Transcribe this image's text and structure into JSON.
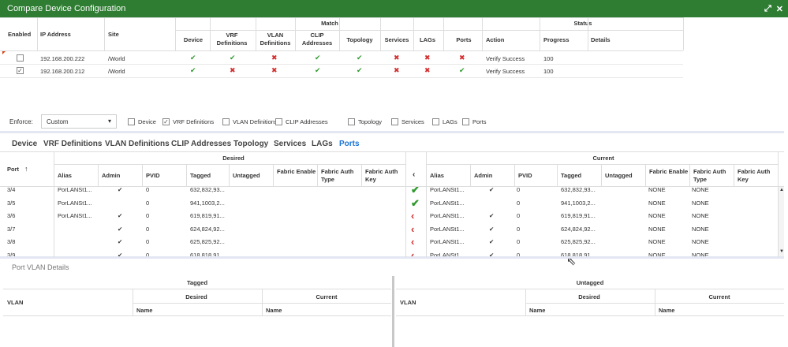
{
  "window": {
    "title": "Compare Device Configuration",
    "maximize_icon": "expand-icon",
    "close_icon": "close-icon"
  },
  "top_table": {
    "group_headers": {
      "match": "Match",
      "status": "Status"
    },
    "columns": {
      "enabled": "Enabled",
      "ip": "IP Address",
      "site": "Site",
      "device": "Device",
      "vrf": "VRF Definitions",
      "vlan": "VLAN Definitions",
      "clip": "CLIP Addresses",
      "topology": "Topology",
      "services": "Services",
      "lags": "LAGs",
      "ports": "Ports",
      "action": "Action",
      "progress": "Progress",
      "details": "Details"
    },
    "rows": [
      {
        "checked": false,
        "ip": "192.168.200.222",
        "site": "/World",
        "match": [
          "ok",
          "ok",
          "bad",
          "ok",
          "ok",
          "bad",
          "bad",
          "bad"
        ],
        "action": "Verify Success",
        "progress": "100"
      },
      {
        "checked": true,
        "ip": "192.168.200.212",
        "site": "/World",
        "match": [
          "ok",
          "bad",
          "bad",
          "ok",
          "ok",
          "bad",
          "bad",
          "ok"
        ],
        "action": "Verify Success",
        "progress": "100"
      }
    ]
  },
  "enforce": {
    "label": "Enforce:",
    "value": "Custom",
    "options": [
      {
        "label": "Device",
        "checked": false
      },
      {
        "label": "VRF Definitions",
        "checked": true
      },
      {
        "label": "VLAN Definitions",
        "checked": false
      },
      {
        "label": "CLIP Addresses",
        "checked": false
      },
      {
        "label": "Topology",
        "checked": false
      },
      {
        "label": "Services",
        "checked": false
      },
      {
        "label": "LAGs",
        "checked": false
      },
      {
        "label": "Ports",
        "checked": false
      }
    ]
  },
  "tabs": [
    "Device",
    "VRF Definitions",
    "VLAN Definitions",
    "CLIP Addresses",
    "Topology",
    "Services",
    "LAGs",
    "Ports"
  ],
  "active_tab": "Ports",
  "ports_table": {
    "group_headers": {
      "desired": "Desired",
      "current": "Current"
    },
    "port_header": "Port",
    "columns": {
      "alias": "Alias",
      "admin": "Admin",
      "pvid": "PVID",
      "tagged": "Tagged",
      "untagged": "Untagged",
      "fabric_enable": "Fabric Enable",
      "fabric_auth_type": "Fabric Auth Type",
      "fabric_auth_key": "Fabric Auth Key"
    },
    "rows": [
      {
        "port": "3/4",
        "d_alias": "PorLANSt1...",
        "d_admin": "✔",
        "d_pvid": "0",
        "d_tagged": "632,832,93...",
        "status": "ok",
        "c_alias": "PorLANSt1...",
        "c_admin": "✔",
        "c_pvid": "0",
        "c_tagged": "632,832,93...",
        "c_fe": "NONE",
        "c_fat": "NONE"
      },
      {
        "port": "3/5",
        "d_alias": "PorLANSt1...",
        "d_admin": "",
        "d_pvid": "0",
        "d_tagged": "941,1003,2...",
        "status": "ok",
        "c_alias": "PorLANSt1...",
        "c_admin": "",
        "c_pvid": "0",
        "c_tagged": "941,1003,2...",
        "c_fe": "NONE",
        "c_fat": "NONE"
      },
      {
        "port": "3/6",
        "d_alias": "PorLANSt1...",
        "d_admin": "✔",
        "d_pvid": "0",
        "d_tagged": "619,819,91...",
        "status": "bad",
        "c_alias": "PorLANSt1...",
        "c_admin": "✔",
        "c_pvid": "0",
        "c_tagged": "619,819,91...",
        "c_fe": "NONE",
        "c_fat": "NONE"
      },
      {
        "port": "3/7",
        "d_alias": "",
        "d_admin": "✔",
        "d_pvid": "0",
        "d_tagged": "624,824,92...",
        "status": "bad",
        "c_alias": "PorLANSt1...",
        "c_admin": "✔",
        "c_pvid": "0",
        "c_tagged": "624,824,92...",
        "c_fe": "NONE",
        "c_fat": "NONE"
      },
      {
        "port": "3/8",
        "d_alias": "",
        "d_admin": "✔",
        "d_pvid": "0",
        "d_tagged": "625,825,92...",
        "status": "bad",
        "c_alias": "PorLANSt1...",
        "c_admin": "✔",
        "c_pvid": "0",
        "c_tagged": "625,825,92...",
        "c_fe": "NONE",
        "c_fat": "NONE"
      },
      {
        "port": "3/9",
        "d_alias": "",
        "d_admin": "✔",
        "d_pvid": "0",
        "d_tagged": "618,818,91...",
        "status": "bad",
        "c_alias": "PorLANSt1...",
        "c_admin": "✔",
        "c_pvid": "0",
        "c_tagged": "618,818,91...",
        "c_fe": "NONE",
        "c_fat": "NONE"
      }
    ]
  },
  "vlan_details": {
    "title": "Port VLAN Details",
    "tagged": "Tagged",
    "untagged": "Untagged",
    "vlan": "VLAN",
    "desired": "Desired",
    "current": "Current",
    "name": "Name"
  }
}
